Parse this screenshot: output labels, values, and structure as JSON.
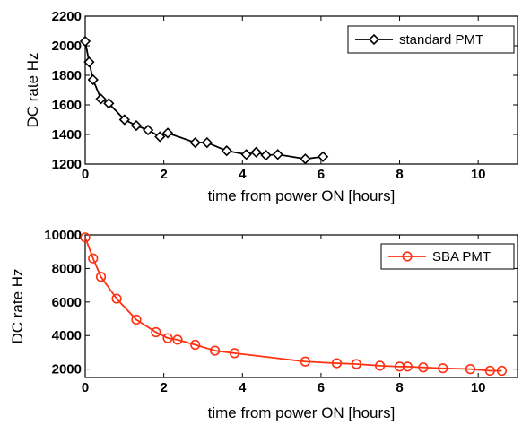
{
  "chart_data": [
    {
      "type": "line",
      "xlabel": "time from power ON [hours]",
      "ylabel": "DC rate Hz",
      "xlim": [
        0,
        11
      ],
      "ylim": [
        1200,
        2200
      ],
      "xticks": [
        "0",
        "2",
        "4",
        "6",
        "8",
        "10"
      ],
      "yticks": [
        "1200",
        "1400",
        "1600",
        "1800",
        "2000",
        "2200"
      ],
      "legend_position": "top-right",
      "series": [
        {
          "name": "standard PMT",
          "color": "#000000",
          "marker": "diamond",
          "x": [
            0.0,
            0.1,
            0.2,
            0.4,
            0.6,
            1.0,
            1.3,
            1.6,
            1.9,
            2.1,
            2.8,
            3.1,
            3.6,
            4.1,
            4.35,
            4.6,
            4.9,
            5.6,
            6.05
          ],
          "y": [
            2030,
            1890,
            1770,
            1640,
            1610,
            1500,
            1460,
            1430,
            1385,
            1410,
            1345,
            1345,
            1290,
            1265,
            1280,
            1260,
            1265,
            1235,
            1250
          ]
        }
      ]
    },
    {
      "type": "line",
      "xlabel": "time from power ON [hours]",
      "ylabel": "DC rate Hz",
      "xlim": [
        0,
        11
      ],
      "ylim": [
        1500,
        10000
      ],
      "xticks": [
        "0",
        "2",
        "4",
        "6",
        "8",
        "10"
      ],
      "yticks": [
        "2000",
        "4000",
        "6000",
        "8000",
        "10000"
      ],
      "legend_position": "top-right",
      "series": [
        {
          "name": "SBA PMT",
          "color": "#ff3010",
          "marker": "circle",
          "x": [
            0.0,
            0.2,
            0.4,
            0.8,
            1.3,
            1.8,
            2.1,
            2.35,
            2.8,
            3.3,
            3.8,
            5.6,
            6.4,
            6.9,
            7.5,
            8.0,
            8.2,
            8.6,
            9.1,
            9.8,
            10.3,
            10.6
          ],
          "y": [
            9850,
            8600,
            7500,
            6200,
            4950,
            4200,
            3850,
            3750,
            3450,
            3100,
            2950,
            2450,
            2350,
            2300,
            2200,
            2150,
            2150,
            2100,
            2050,
            2000,
            1900,
            1900
          ]
        }
      ]
    }
  ]
}
